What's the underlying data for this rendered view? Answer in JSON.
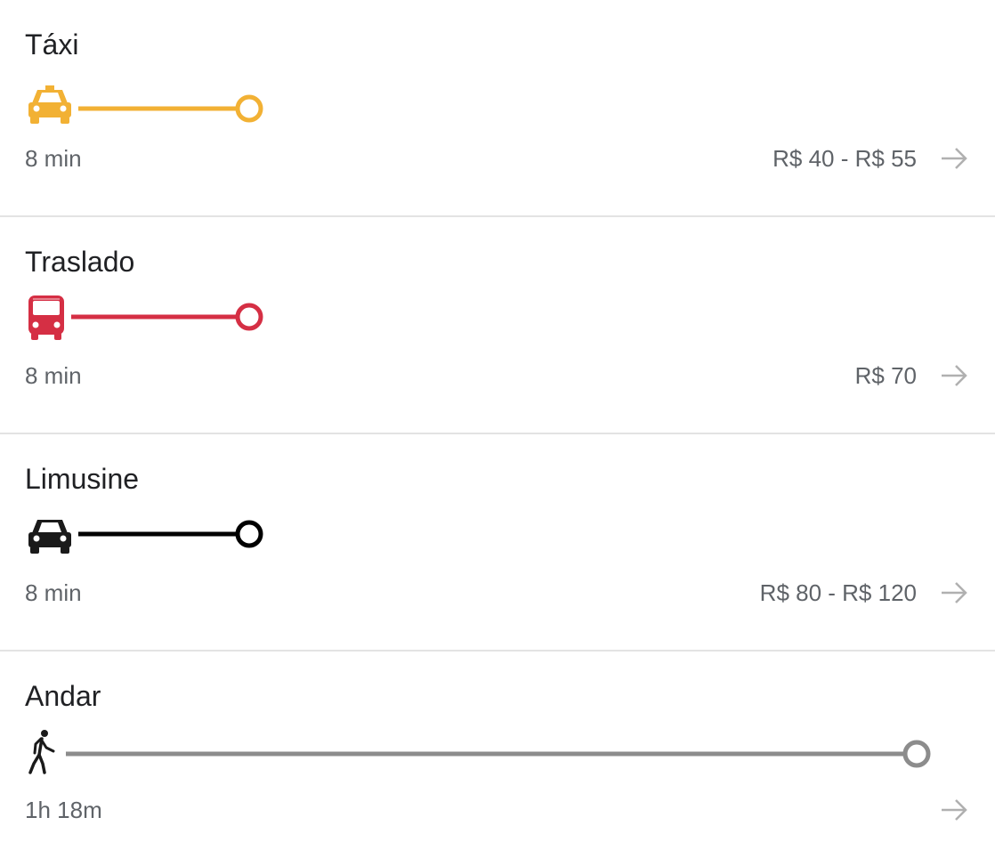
{
  "options": [
    {
      "title": "Táxi",
      "duration": "8 min",
      "price": "R$ 40 - R$ 55",
      "icon": "taxi-icon",
      "color": "#f2b134"
    },
    {
      "title": "Traslado",
      "duration": "8 min",
      "price": "R$ 70",
      "icon": "bus-icon",
      "color": "#d52f44"
    },
    {
      "title": "Limusine",
      "duration": "8 min",
      "price": "R$ 80 - R$ 120",
      "icon": "car-icon",
      "color": "#000000"
    },
    {
      "title": "Andar",
      "duration": "1h 18m",
      "price": "",
      "icon": "walk-icon",
      "color": "#8c8c8c"
    }
  ],
  "arrow_color": "#b0b0b0"
}
